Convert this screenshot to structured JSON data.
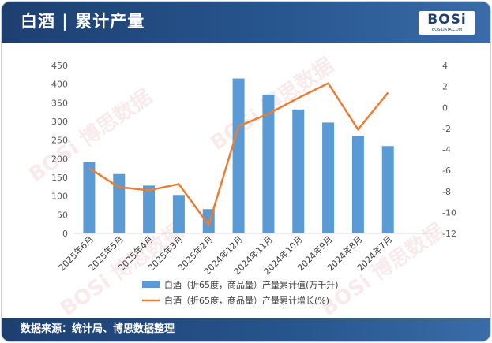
{
  "header": {
    "title": "白酒 | 累计产量"
  },
  "logo": {
    "word": "BOSi",
    "sub": "BOSIDATA.COM"
  },
  "footer": {
    "source": "数据来源：统计局、博思数据整理"
  },
  "colors": {
    "bar": "#5b9bd5",
    "line": "#ed7d31",
    "header": "#1d3f70"
  },
  "watermarks": [
    "BOSi 博思数据",
    "BOSi 博思数据",
    "BOSi 博思数据",
    "BOSi 博思数据"
  ],
  "chart_data": {
    "type": "bar",
    "categories": [
      "2025年6月",
      "2025年5月",
      "2025年4月",
      "2025年3月",
      "2025年2月",
      "2024年12月",
      "2024年11月",
      "2024年10月",
      "2024年9月",
      "2024年8月",
      "2024年7月"
    ],
    "series": [
      {
        "name": "白酒（折65度，商品量）产量累计值(万千升)",
        "type": "bar",
        "axis": "left",
        "values": [
          191,
          159,
          128,
          103,
          65,
          415,
          372,
          332,
          297,
          262,
          234
        ]
      },
      {
        "name": "白酒（折65度，商品量）产量累计增长(%)",
        "type": "line",
        "axis": "right",
        "values": [
          -5.8,
          -7.6,
          -7.9,
          -7.3,
          -11.2,
          -1.8,
          -0.6,
          0.9,
          2.3,
          -2.1,
          1.4
        ]
      }
    ],
    "ylim": [
      0,
      450
    ],
    "y_ticks": [
      0,
      50,
      100,
      150,
      200,
      250,
      300,
      350,
      400,
      450
    ],
    "y2lim": [
      -12,
      4
    ],
    "y2_ticks": [
      -12,
      -10,
      -8,
      -6,
      -4,
      -2,
      0,
      2,
      4
    ],
    "legend_position": "bottom",
    "grid": false
  }
}
